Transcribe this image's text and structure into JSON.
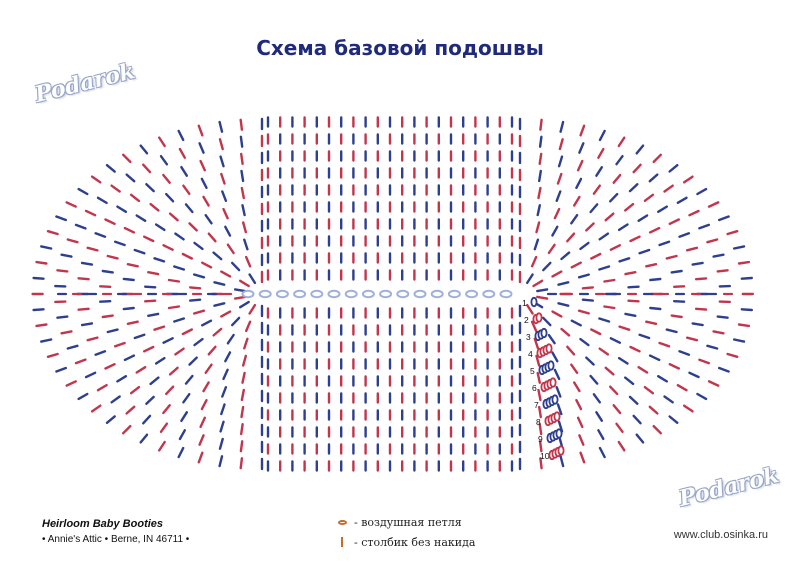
{
  "title": "Схема базовой подошвы",
  "watermark": "Podarok",
  "booklet": {
    "title": "Heirloom Baby Booties",
    "subtitle": "• Annie's Attic • Berne, IN 46711 •"
  },
  "legend": [
    {
      "symbol": "chain-stitch-icon",
      "label": "- воздушная петля"
    },
    {
      "symbol": "single-crochet-icon",
      "label": "- столбик без накида"
    }
  ],
  "site": "www.club.osinka.ru",
  "row_numbers": [
    "1",
    "2",
    "3",
    "4",
    "5",
    "6",
    "7",
    "8",
    "9",
    "10"
  ],
  "colors": {
    "red": "#c2354d",
    "blue": "#2d3f8e",
    "chain_fill": "#9fb0dc",
    "title": "#1f2a7a",
    "legend_symbol": "#c86a2a"
  }
}
